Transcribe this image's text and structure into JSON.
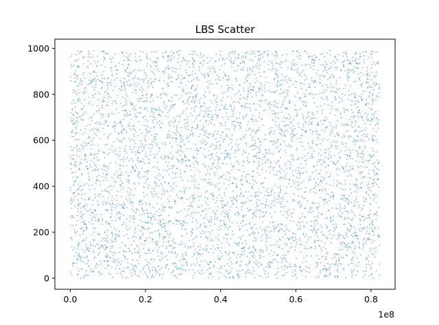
{
  "chart_data": {
    "type": "scatter",
    "title": "LBS Scatter",
    "xlabel": "",
    "ylabel": "",
    "x_offset_text": "1e8",
    "xlim": [
      -4100000,
      86400000
    ],
    "ylim": [
      -48,
      1040
    ],
    "x_ticks": [
      0,
      20000000,
      40000000,
      60000000,
      80000000
    ],
    "x_tick_labels": [
      "0.0",
      "0.2",
      "0.4",
      "0.6",
      "0.8"
    ],
    "y_ticks": [
      0,
      200,
      400,
      600,
      800,
      1000
    ],
    "y_tick_labels": [
      "0",
      "200",
      "400",
      "600",
      "800",
      "1000"
    ],
    "x_range": [
      0,
      82300000
    ],
    "y_range": [
      0,
      990
    ],
    "point_color": "#1f77b4",
    "series": [
      {
        "values": "dense uniform cloud of points spanning x 0 to 8.23e7 and y 0 to 990"
      }
    ],
    "grid": false,
    "legend": "none"
  }
}
